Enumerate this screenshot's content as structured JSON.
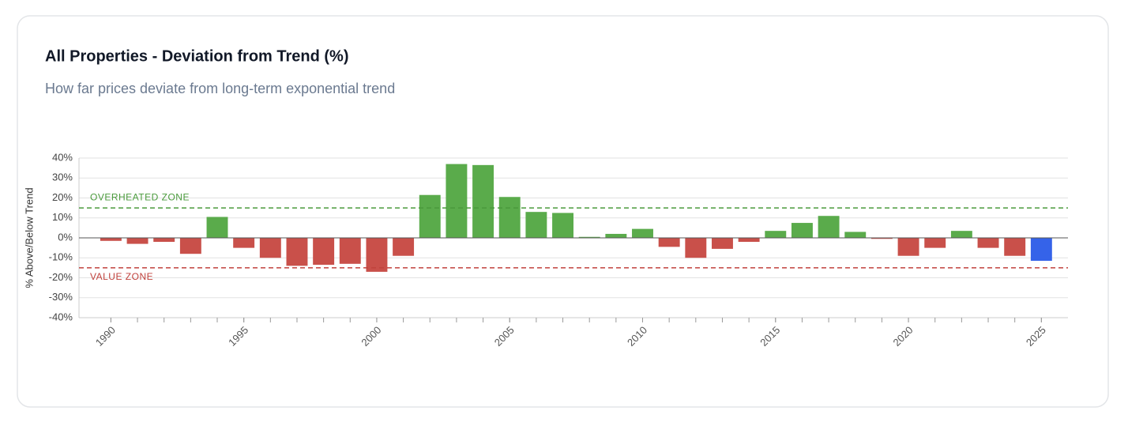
{
  "chart_data": {
    "type": "bar",
    "title": "All Properties - Deviation from Trend (%)",
    "subtitle": "How far prices deviate from long-term exponential trend",
    "y_label": "% Above/Below Trend",
    "x": [
      1990,
      1991,
      1992,
      1993,
      1994,
      1995,
      1996,
      1997,
      1998,
      1999,
      2000,
      2001,
      2002,
      2003,
      2004,
      2005,
      2006,
      2007,
      2008,
      2009,
      2010,
      2011,
      2012,
      2013,
      2014,
      2015,
      2016,
      2017,
      2018,
      2019,
      2020,
      2021,
      2022,
      2023,
      2024,
      2025
    ],
    "values": [
      -1.5,
      -3,
      -2,
      -8,
      10.5,
      -5,
      -10,
      -14,
      -13.5,
      -13,
      -17,
      -9,
      21.5,
      37,
      36.5,
      20.5,
      13,
      12.5,
      0.5,
      2,
      4.5,
      -4.5,
      -10,
      -5.5,
      -2,
      3.5,
      7.5,
      11,
      3,
      -0.5,
      -9,
      -5,
      3.5,
      -5,
      -9,
      -11.5
    ],
    "colors": [
      "#c9504a",
      "#c9504a",
      "#c9504a",
      "#c9504a",
      "#5aab4b",
      "#c9504a",
      "#c9504a",
      "#c9504a",
      "#c9504a",
      "#c9504a",
      "#c9504a",
      "#c9504a",
      "#5aab4b",
      "#5aab4b",
      "#5aab4b",
      "#5aab4b",
      "#5aab4b",
      "#5aab4b",
      "#5aab4b",
      "#5aab4b",
      "#5aab4b",
      "#c9504a",
      "#c9504a",
      "#c9504a",
      "#c9504a",
      "#5aab4b",
      "#5aab4b",
      "#5aab4b",
      "#5aab4b",
      "#c9504a",
      "#c9504a",
      "#c9504a",
      "#5aab4b",
      "#c9504a",
      "#c9504a",
      "#3563e9"
    ],
    "xlim": [
      1988.8,
      2026
    ],
    "xticks": [
      1990,
      1995,
      2000,
      2005,
      2010,
      2015,
      2020,
      2025
    ],
    "ylim": [
      -40,
      40
    ],
    "yticks": [
      {
        "value": -40,
        "label": "-40%"
      },
      {
        "value": -30,
        "label": "-30%"
      },
      {
        "value": -20,
        "label": "-20%"
      },
      {
        "value": -10,
        "label": "-10%"
      },
      {
        "value": 0,
        "label": "0%"
      },
      {
        "value": 10,
        "label": "10%"
      },
      {
        "value": 20,
        "label": "20%"
      },
      {
        "value": 30,
        "label": "30%"
      },
      {
        "value": 40,
        "label": "40%"
      }
    ],
    "grid": true,
    "reference_lines": [
      {
        "value": 15,
        "label": "OVERHEATED ZONE",
        "color": "#4a9a3c"
      },
      {
        "value": -15,
        "label": "VALUE ZONE",
        "color": "#c0423d"
      }
    ]
  }
}
